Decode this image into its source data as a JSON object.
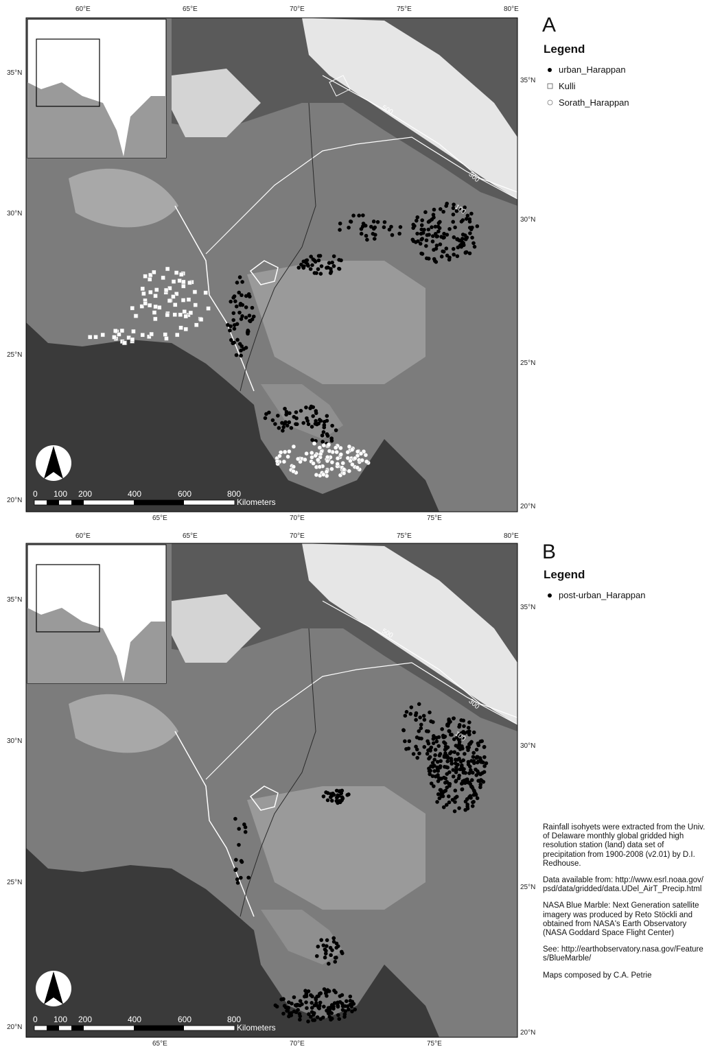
{
  "axes": {
    "top_lon": [
      "60°E",
      "65°E",
      "70°E",
      "75°E",
      "80°E"
    ],
    "bottom_lon": [
      "65°E",
      "70°E",
      "75°E"
    ],
    "left_lat": [
      "35°N",
      "30°N",
      "25°N",
      "20°N"
    ],
    "right_lat": [
      "35°N",
      "30°N",
      "25°N",
      "20°N"
    ]
  },
  "scale_bar": {
    "labels": [
      "0",
      "100",
      "200",
      "400",
      "600",
      "800"
    ],
    "unit": "Kilometers"
  },
  "isohyets": [
    "100",
    "300",
    "500"
  ],
  "panel_a": {
    "letter": "A",
    "legend_title": "Legend",
    "legend": [
      {
        "symbol": "filled-circle",
        "label": "urban_Harappan"
      },
      {
        "symbol": "open-square",
        "label": "Kulli"
      },
      {
        "symbol": "open-circle",
        "label": "Sorath_Harappan"
      }
    ]
  },
  "panel_b": {
    "letter": "B",
    "legend_title": "Legend",
    "legend": [
      {
        "symbol": "filled-circle",
        "label": "post-urban_Harappan"
      }
    ]
  },
  "credits": [
    "Rainfall isohyets were extracted from the Univ. of Delaware monthly global gridded high resolution station (land) data set of precipitation from 1900-2008 (v2.01) by D.I. Redhouse.",
    "Data available from: http://www.esrl.noaa.gov/psd/data/gridded/data.UDel_AirT_Precip.html",
    "NASA Blue Marble: Next Generation satellite imagery was produced by Reto Stöckli and obtained from NASA's Earth Observatory (NASA Goddard Space Flight Center)",
    "See: http://earthobservatory.nasa.gov/Features/BlueMarble/",
    "Maps composed by C.A. Petrie"
  ],
  "colors": {
    "land": "#7c7c7c",
    "sea": "#3a3a3a",
    "snow": "#e8e8e8",
    "inset_land": "#9a9a9a",
    "site": "#000000"
  }
}
